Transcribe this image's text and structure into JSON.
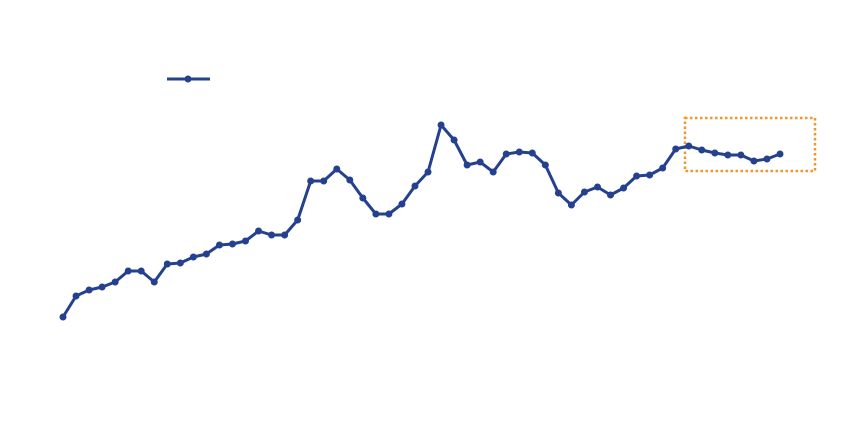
{
  "chart_data": {
    "type": "line",
    "categories": [
      null,
      null,
      null,
      null,
      null,
      null,
      null,
      null,
      null,
      null,
      null,
      null,
      null,
      null,
      null,
      null,
      null,
      null,
      null,
      null,
      null,
      null,
      null,
      null,
      null,
      null,
      null,
      null,
      null,
      null,
      null,
      null,
      null,
      null,
      null,
      null,
      null,
      null,
      null,
      null,
      null,
      null,
      null,
      null,
      null,
      null,
      null,
      null,
      null,
      null,
      null,
      null,
      null,
      null,
      null,
      null
    ],
    "values": [
      63,
      84,
      90,
      93,
      98,
      109,
      109,
      98,
      116,
      117,
      123,
      126,
      135,
      136,
      139,
      149,
      145,
      145,
      160,
      199,
      199,
      211,
      200,
      182,
      166,
      166,
      176,
      194,
      208,
      255,
      240,
      215,
      218,
      208,
      226,
      228,
      227,
      215,
      187,
      175,
      188,
      193,
      185,
      192,
      204,
      205,
      212,
      231,
      234,
      230,
      227,
      225,
      225,
      219,
      221,
      226
    ],
    "color": "#24408e",
    "ylim": [
      0,
      380
    ]
  }
}
